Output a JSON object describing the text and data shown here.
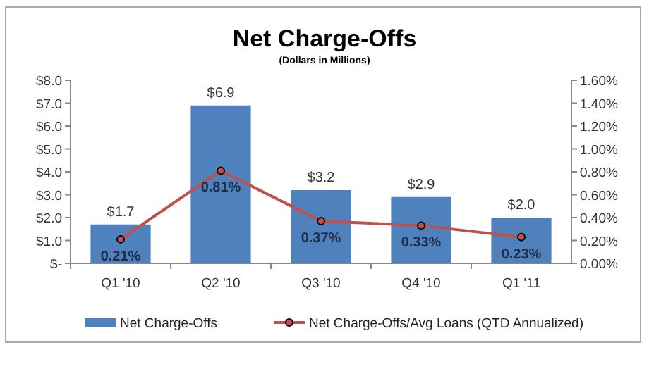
{
  "chart_data": {
    "type": "bar",
    "title": "Net Charge-Offs",
    "subtitle": "(Dollars in Millions)",
    "categories": [
      "Q1 '10",
      "Q2 '10",
      "Q3 '10",
      "Q4 '10",
      "Q1 '11"
    ],
    "series": [
      {
        "name": "Net Charge-Offs",
        "color": "#4f81bd",
        "values": [
          1.7,
          6.9,
          3.2,
          2.9,
          2.0
        ],
        "value_labels": [
          "$1.7",
          "$6.9",
          "$3.2",
          "$2.9",
          "$2.0"
        ]
      },
      {
        "name": "Net Charge-Offs/Avg Loans (QTD Annualized)",
        "type": "line",
        "axis": "y2",
        "color": "#c0504d",
        "marker": "circle",
        "values": [
          0.21,
          0.81,
          0.37,
          0.33,
          0.23
        ],
        "value_labels": [
          "0.21%",
          "0.81%",
          "0.37%",
          "0.33%",
          "0.23%"
        ]
      }
    ],
    "ylim": [
      0,
      8
    ],
    "yticks": [
      {
        "value": 0,
        "label": "$-"
      },
      {
        "value": 1,
        "label": "$1.0"
      },
      {
        "value": 2,
        "label": "$2.0"
      },
      {
        "value": 3,
        "label": "$3.0"
      },
      {
        "value": 4,
        "label": "$4.0"
      },
      {
        "value": 5,
        "label": "$5.0"
      },
      {
        "value": 6,
        "label": "$6.0"
      },
      {
        "value": 7,
        "label": "$7.0"
      },
      {
        "value": 8,
        "label": "$8.0"
      }
    ],
    "y2lim": [
      0,
      1.6
    ],
    "y2ticks": [
      {
        "value": 0,
        "label": "0.00%"
      },
      {
        "value": 0.2,
        "label": "0.20%"
      },
      {
        "value": 0.4,
        "label": "0.40%"
      },
      {
        "value": 0.6,
        "label": "0.60%"
      },
      {
        "value": 0.8,
        "label": "0.80%"
      },
      {
        "value": 1.0,
        "label": "1.00%"
      },
      {
        "value": 1.2,
        "label": "1.20%"
      },
      {
        "value": 1.4,
        "label": "1.40%"
      },
      {
        "value": 1.6,
        "label": "1.60%"
      }
    ],
    "legend": "bottom",
    "grid": false
  }
}
